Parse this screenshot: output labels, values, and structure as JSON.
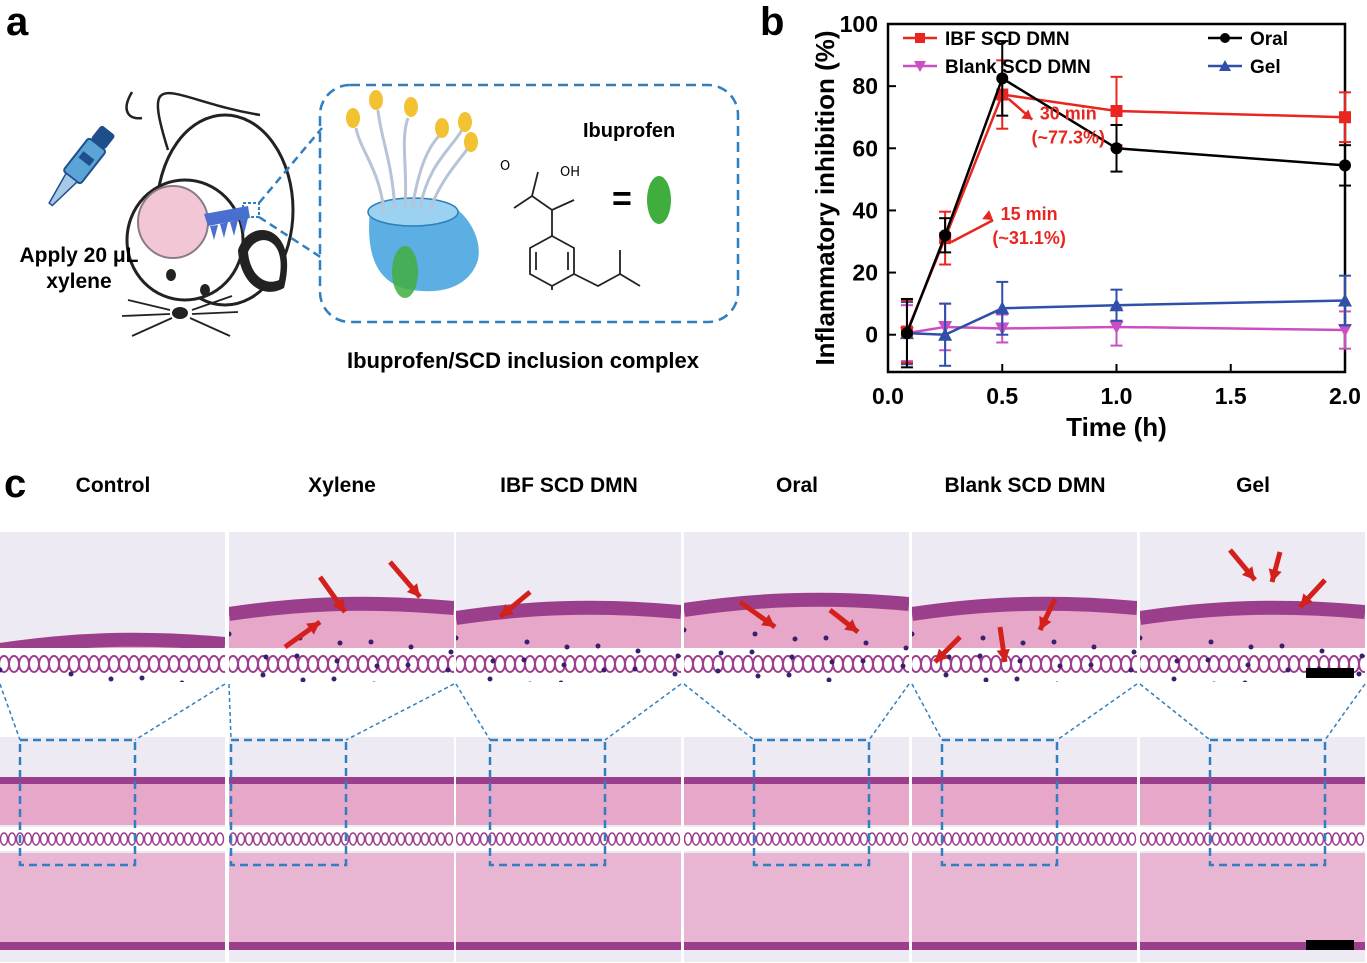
{
  "panel_a": {
    "letter": "a",
    "apply_line1": "Apply 20 μL",
    "apply_line2": "xylene",
    "drug_label": "Ibuprofen",
    "equals_sign": "=",
    "oh_label": "OH",
    "o_label": "O",
    "caption": "Ibuprofen/SCD inclusion complex",
    "colors": {
      "dash_box": "#2f7fc1",
      "cone": "#4aa6e0",
      "drug": "#3fae3f",
      "polymer_tip": "#f2c233"
    }
  },
  "panel_b": {
    "letter": "b",
    "chart_data": {
      "type": "line",
      "xlabel": "Time (h)",
      "ylabel": "Inflammatory inhibition (%)",
      "xlim": [
        0,
        2.0
      ],
      "ylim": [
        -12,
        100
      ],
      "xticks": [
        "0.0",
        "0.5",
        "1.0",
        "1.5",
        "2.0"
      ],
      "yticks": [
        "0",
        "20",
        "40",
        "60",
        "80",
        "100"
      ],
      "legend_position": "top",
      "series": [
        {
          "name": "IBF SCD DMN",
          "color": "#e8261f",
          "marker": "square",
          "x": [
            0.083,
            0.25,
            0.5,
            1.0,
            2.0
          ],
          "y": [
            1.0,
            31.1,
            77.3,
            72.0,
            70.0
          ],
          "err": [
            10,
            8.5,
            11,
            11,
            8
          ]
        },
        {
          "name": "Oral",
          "color": "#000000",
          "marker": "circle",
          "x": [
            0.083,
            0.25,
            0.5,
            1.0,
            2.0
          ],
          "y": [
            0.5,
            32.0,
            82.5,
            60.0,
            54.5
          ],
          "err": [
            11,
            5.5,
            12,
            7.5,
            6.5
          ]
        },
        {
          "name": "Blank SCD DMN",
          "color": "#c94fc3",
          "marker": "triangle-down",
          "x": [
            0.083,
            0.25,
            0.5,
            1.0,
            2.0
          ],
          "y": [
            0.5,
            2.5,
            2.0,
            2.5,
            1.5
          ],
          "err": [
            9,
            7.5,
            4.5,
            6,
            6
          ]
        },
        {
          "name": "Gel",
          "color": "#2f4fa8",
          "marker": "triangle-up",
          "x": [
            0.083,
            0.25,
            0.5,
            1.0,
            2.0
          ],
          "y": [
            0.5,
            0.0,
            8.5,
            9.5,
            11.0
          ],
          "err": [
            10,
            10,
            8.5,
            5,
            8
          ]
        }
      ],
      "annotations": [
        {
          "line1": "30 min",
          "line2": "(~77.3%)",
          "x": 0.5,
          "y": 77.3,
          "color": "#e8261f"
        },
        {
          "line1": "15 min",
          "line2": "(~31.1%)",
          "x": 0.25,
          "y": 31.1,
          "color": "#e8261f"
        }
      ]
    }
  },
  "panel_c": {
    "letter": "c",
    "labels": [
      "Control",
      "Xylene",
      "IBF SCD DMN",
      "Oral",
      "Blank SCD DMN",
      "Gel"
    ],
    "colors": {
      "tissue_pink": "#e6a7c9",
      "epidermis": "#9b3f8d",
      "nuclei": "#3a1f6e",
      "background": "#eeeaf3",
      "arrow": "#d4201b",
      "zoom_box": "#2f7fc1"
    }
  }
}
